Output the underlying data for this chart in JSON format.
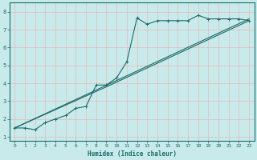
{
  "title": "",
  "xlabel": "Humidex (Indice chaleur)",
  "ylabel": "",
  "bg_color": "#c8eaea",
  "grid_color": "#e8b8b8",
  "line_color": "#1a6b6b",
  "xlim": [
    -0.5,
    23.5
  ],
  "ylim": [
    0.8,
    8.5
  ],
  "xticks": [
    0,
    1,
    2,
    3,
    4,
    5,
    6,
    7,
    8,
    9,
    10,
    11,
    12,
    13,
    14,
    15,
    16,
    17,
    18,
    19,
    20,
    21,
    22,
    23
  ],
  "yticks": [
    1,
    2,
    3,
    4,
    5,
    6,
    7,
    8
  ],
  "line1_x": [
    0,
    1,
    2,
    3,
    4,
    5,
    6,
    7,
    8,
    9,
    10,
    11,
    12,
    13,
    14,
    15,
    16,
    17,
    18,
    19,
    20,
    21,
    22,
    23
  ],
  "line1_y": [
    1.5,
    1.5,
    1.4,
    1.8,
    2.0,
    2.2,
    2.6,
    2.7,
    3.9,
    3.9,
    4.3,
    5.2,
    7.65,
    7.3,
    7.5,
    7.5,
    7.5,
    7.5,
    7.8,
    7.6,
    7.6,
    7.6,
    7.6,
    7.5
  ],
  "line2_x": [
    0,
    23
  ],
  "line2_y": [
    1.5,
    7.6
  ],
  "line3_x": [
    0,
    9,
    23
  ],
  "line3_y": [
    1.5,
    3.8,
    7.5
  ],
  "figsize": [
    3.2,
    2.0
  ],
  "dpi": 100
}
